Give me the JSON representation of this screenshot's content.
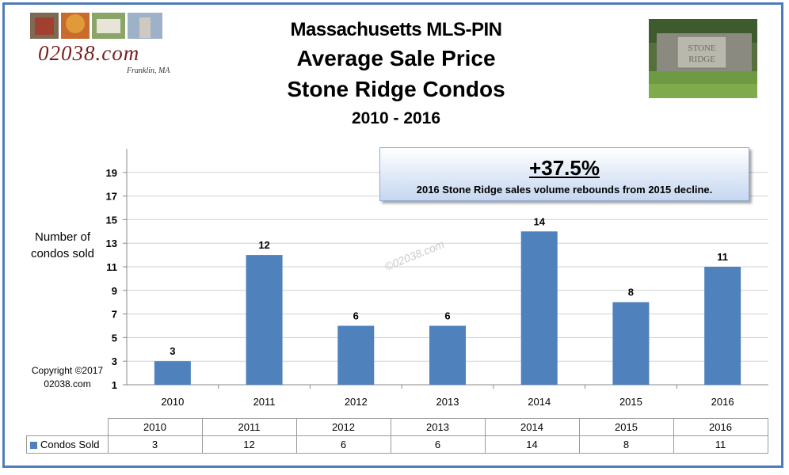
{
  "logo": {
    "text": "02038.com",
    "subtext": "Franklin, MA"
  },
  "photo": {
    "sign_text": "STONE RIDGE"
  },
  "titles": {
    "line1": "Massachusetts MLS-PIN",
    "line2": "Average Sale Price",
    "line3": "Stone Ridge Condos",
    "line4": "2010 - 2016"
  },
  "callout": {
    "headline": "+37.5%",
    "body": "2016 Stone Ridge sales volume rebounds from 2015 decline."
  },
  "copyright": {
    "line1": "Copyright ©2017",
    "line2": "02038.com"
  },
  "watermark": "©02038.com",
  "colors": {
    "bar": "#4f81bd",
    "frame": "#4f7cb8"
  },
  "chart_data": {
    "type": "bar",
    "categories": [
      "2010",
      "2011",
      "2012",
      "2013",
      "2014",
      "2015",
      "2016"
    ],
    "series": [
      {
        "name": "Condos Sold",
        "values": [
          3,
          12,
          6,
          6,
          14,
          8,
          11
        ]
      }
    ],
    "title": "Massachusetts MLS-PIN Average Sale Price Stone Ridge Condos",
    "subtitle": "2010 - 2016",
    "xlabel": "",
    "ylabel": "Number of condos sold",
    "ylim": [
      1,
      21
    ],
    "yticks": [
      1,
      3,
      5,
      7,
      9,
      11,
      13,
      15,
      17,
      19
    ],
    "grid": true,
    "legend": "data-table",
    "data_labels": true
  },
  "data_table": {
    "headers": [
      "2010",
      "2011",
      "2012",
      "2013",
      "2014",
      "2015",
      "2016"
    ],
    "row_label": "Condos Sold",
    "values": [
      "3",
      "12",
      "6",
      "6",
      "14",
      "8",
      "11"
    ]
  }
}
